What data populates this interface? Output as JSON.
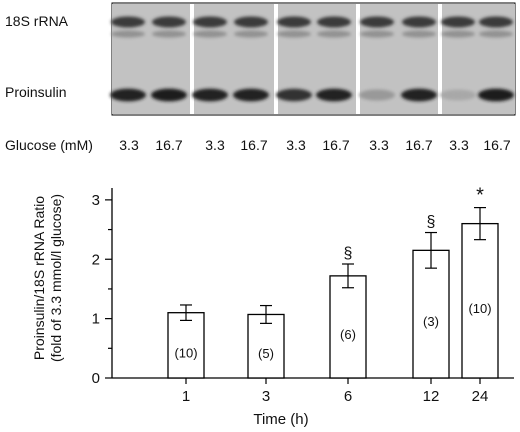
{
  "blot": {
    "band_labels": [
      "18S rRNA",
      "Proinsulin"
    ],
    "glucose_label": "Glucose (mM)",
    "lanes": [
      "3.3",
      "16.7",
      "3.3",
      "16.7",
      "3.3",
      "16.7",
      "3.3",
      "16.7",
      "3.3",
      "16.7"
    ],
    "proinsulin_intensity": [
      0.9,
      0.92,
      0.9,
      0.9,
      0.82,
      0.9,
      0.35,
      0.9,
      0.28,
      0.92
    ]
  },
  "chart_data": {
    "type": "bar",
    "categories": [
      "1",
      "3",
      "6",
      "12",
      "24"
    ],
    "values": [
      1.1,
      1.07,
      1.72,
      2.15,
      2.6
    ],
    "errors": [
      0.13,
      0.15,
      0.2,
      0.3,
      0.27
    ],
    "n_labels": [
      "(10)",
      "(5)",
      "(6)",
      "(3)",
      "(10)"
    ],
    "significance": [
      "",
      "",
      "§",
      "§",
      "*"
    ],
    "xlabel": "Time (h)",
    "ylabel": [
      "Proinsulin/18S rRNA Ratio",
      "(fold of 3.3 mmol/l glucose)"
    ],
    "yticks": [
      "0",
      "1",
      "2",
      "3"
    ],
    "ylim": [
      0,
      3.2
    ],
    "bar_color": "#ffffff",
    "edge_color": "#000000"
  }
}
